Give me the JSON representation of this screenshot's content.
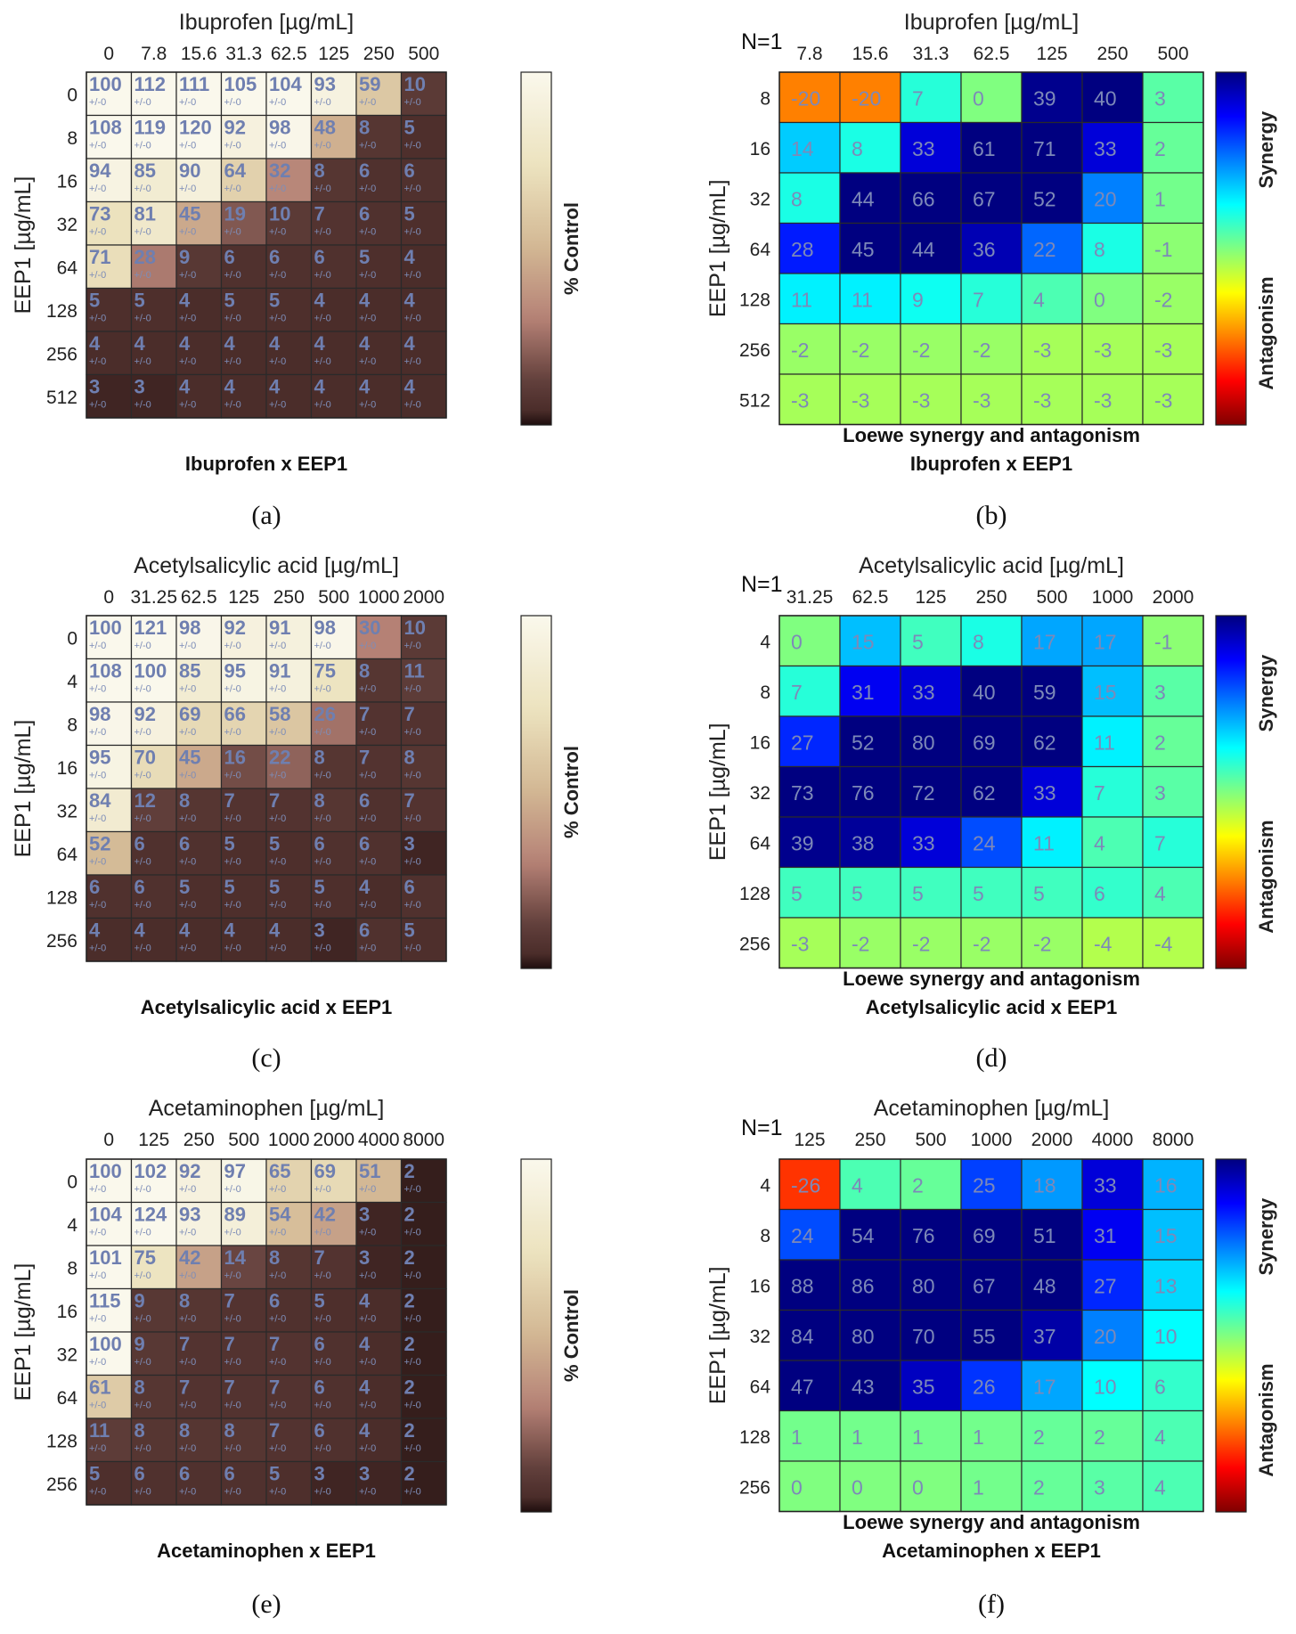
{
  "pm": "+/-0",
  "chart_data": [
    {
      "id": "a",
      "type": "heatmap",
      "subtitle": "% Control",
      "title": "Ibuprofen [µg/mL]",
      "xticks": [
        "0",
        "7.8",
        "15.6",
        "31.3",
        "62.5",
        "125",
        "250",
        "500"
      ],
      "ylabel": "EEP1 [µg/mL]",
      "yticks": [
        "0",
        "8",
        "16",
        "32",
        "64",
        "128",
        "256",
        "512"
      ],
      "values": [
        [
          100,
          112,
          111,
          105,
          104,
          93,
          59,
          10
        ],
        [
          108,
          119,
          120,
          92,
          98,
          48,
          8,
          5
        ],
        [
          94,
          85,
          90,
          64,
          32,
          8,
          6,
          6
        ],
        [
          73,
          81,
          45,
          19,
          10,
          7,
          6,
          5
        ],
        [
          71,
          28,
          9,
          6,
          6,
          6,
          5,
          4
        ],
        [
          5,
          5,
          4,
          5,
          5,
          4,
          4,
          4
        ],
        [
          4,
          4,
          4,
          4,
          4,
          4,
          4,
          4
        ],
        [
          3,
          3,
          4,
          4,
          4,
          4,
          4,
          4
        ]
      ],
      "colorbar_label": "% Control",
      "caption": "Ibuprofen x EEP1",
      "panel_label": "(a)"
    },
    {
      "id": "b",
      "type": "heatmap",
      "title": "Ibuprofen [µg/mL]",
      "n_label": "N=1",
      "xticks": [
        "7.8",
        "15.6",
        "31.3",
        "62.5",
        "125",
        "250",
        "500"
      ],
      "ylabel": "EEP1 [µg/mL]",
      "yticks": [
        "8",
        "16",
        "32",
        "64",
        "128",
        "256",
        "512"
      ],
      "values": [
        [
          -20,
          -20,
          7,
          0,
          39,
          40,
          3
        ],
        [
          14,
          8,
          33,
          61,
          71,
          33,
          2
        ],
        [
          8,
          44,
          66,
          67,
          52,
          20,
          1
        ],
        [
          28,
          45,
          44,
          36,
          22,
          8,
          -1
        ],
        [
          11,
          11,
          9,
          7,
          4,
          0,
          -2
        ],
        [
          -2,
          -2,
          -2,
          -2,
          -3,
          -3,
          -3
        ],
        [
          -3,
          -3,
          -3,
          -3,
          -3,
          -3,
          -3
        ]
      ],
      "colorbar_labels": {
        "top": "Synergy",
        "bottom": "Antagonism"
      },
      "caption1": "Loewe synergy and antagonism",
      "caption2": "Ibuprofen x EEP1",
      "panel_label": "(b)"
    },
    {
      "id": "c",
      "type": "heatmap",
      "title": "Acetylsalicylic acid [µg/mL]",
      "xticks": [
        "0",
        "31.25",
        "62.5",
        "125",
        "250",
        "500",
        "1000",
        "2000"
      ],
      "ylabel": "EEP1 [µg/mL]",
      "yticks": [
        "0",
        "4",
        "8",
        "16",
        "32",
        "64",
        "128",
        "256"
      ],
      "values": [
        [
          100,
          121,
          98,
          92,
          91,
          98,
          30,
          10
        ],
        [
          108,
          100,
          85,
          95,
          91,
          75,
          8,
          11
        ],
        [
          98,
          92,
          69,
          66,
          58,
          26,
          7,
          7
        ],
        [
          95,
          70,
          45,
          16,
          22,
          8,
          7,
          8
        ],
        [
          84,
          12,
          8,
          7,
          7,
          8,
          6,
          7
        ],
        [
          52,
          6,
          6,
          5,
          5,
          6,
          6,
          3
        ],
        [
          6,
          6,
          5,
          5,
          5,
          5,
          4,
          6
        ],
        [
          4,
          4,
          4,
          4,
          4,
          3,
          6,
          5
        ]
      ],
      "colorbar_label": "% Control",
      "caption": "Acetylsalicylic acid x EEP1",
      "panel_label": "(c)"
    },
    {
      "id": "d",
      "type": "heatmap",
      "title": "Acetylsalicylic acid [µg/mL]",
      "n_label": "N=1",
      "xticks": [
        "31.25",
        "62.5",
        "125",
        "250",
        "500",
        "1000",
        "2000"
      ],
      "ylabel": "EEP1 [µg/mL]",
      "yticks": [
        "4",
        "8",
        "16",
        "32",
        "64",
        "128",
        "256"
      ],
      "values": [
        [
          0,
          15,
          5,
          8,
          17,
          17,
          -1
        ],
        [
          7,
          31,
          33,
          40,
          59,
          15,
          3
        ],
        [
          27,
          52,
          80,
          69,
          62,
          11,
          2
        ],
        [
          73,
          76,
          72,
          62,
          33,
          7,
          3
        ],
        [
          39,
          38,
          33,
          24,
          11,
          4,
          7
        ],
        [
          5,
          5,
          5,
          5,
          5,
          6,
          4
        ],
        [
          -3,
          -2,
          -2,
          -2,
          -2,
          -4,
          -4
        ]
      ],
      "colorbar_labels": {
        "top": "Synergy",
        "bottom": "Antagonism"
      },
      "caption1": "Loewe synergy and antagonism",
      "caption2": "Acetylsalicylic acid x EEP1",
      "panel_label": "(d)"
    },
    {
      "id": "e",
      "type": "heatmap",
      "title": "Acetaminophen [µg/mL]",
      "xticks": [
        "0",
        "125",
        "250",
        "500",
        "1000",
        "2000",
        "4000",
        "8000"
      ],
      "ylabel": "EEP1 [µg/mL]",
      "yticks": [
        "0",
        "4",
        "8",
        "16",
        "32",
        "64",
        "128",
        "256"
      ],
      "values": [
        [
          100,
          102,
          92,
          97,
          65,
          69,
          51,
          2
        ],
        [
          104,
          124,
          93,
          89,
          54,
          42,
          3,
          2
        ],
        [
          101,
          75,
          42,
          14,
          8,
          7,
          3,
          2
        ],
        [
          115,
          9,
          8,
          7,
          6,
          5,
          4,
          2
        ],
        [
          100,
          9,
          7,
          7,
          7,
          6,
          4,
          2
        ],
        [
          61,
          8,
          7,
          7,
          7,
          6,
          4,
          2
        ],
        [
          11,
          8,
          8,
          8,
          7,
          6,
          4,
          2
        ],
        [
          5,
          6,
          6,
          6,
          5,
          3,
          3,
          2
        ]
      ],
      "colorbar_label": "% Control",
      "caption": "Acetaminophen x EEP1",
      "panel_label": "(e)"
    },
    {
      "id": "f",
      "type": "heatmap",
      "title": "Acetaminophen [µg/mL]",
      "n_label": "N=1",
      "xticks": [
        "125",
        "250",
        "500",
        "1000",
        "2000",
        "4000",
        "8000"
      ],
      "ylabel": "EEP1 [µg/mL]",
      "yticks": [
        "4",
        "8",
        "16",
        "32",
        "64",
        "128",
        "256"
      ],
      "values": [
        [
          -26,
          4,
          2,
          25,
          18,
          33,
          16
        ],
        [
          24,
          54,
          76,
          69,
          51,
          31,
          15
        ],
        [
          88,
          86,
          80,
          67,
          48,
          27,
          13
        ],
        [
          84,
          80,
          70,
          55,
          37,
          20,
          10
        ],
        [
          47,
          43,
          35,
          26,
          17,
          10,
          6
        ],
        [
          1,
          1,
          1,
          1,
          2,
          2,
          4
        ],
        [
          0,
          0,
          0,
          1,
          2,
          3,
          4
        ]
      ],
      "colorbar_labels": {
        "top": "Synergy",
        "bottom": "Antagonism"
      },
      "caption1": "Loewe synergy and antagonism",
      "caption2": "Acetaminophen x EEP1",
      "panel_label": "(f)"
    }
  ]
}
